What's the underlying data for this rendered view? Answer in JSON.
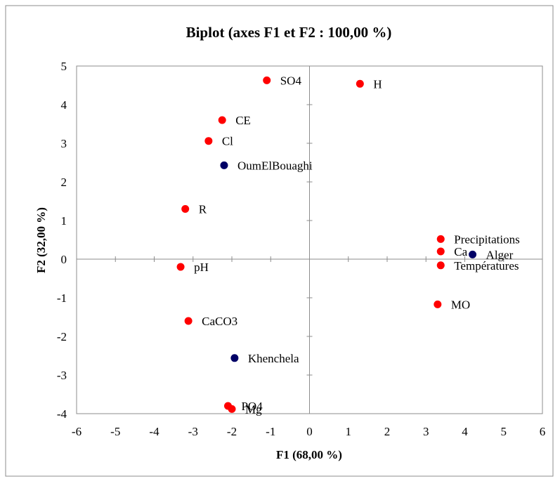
{
  "chart_data": {
    "type": "scatter",
    "title": "Biplot (axes F1 et F2 : 100,00 %)",
    "xlabel": "F1 (68,00 %)",
    "ylabel": "F2 (32,00 %)",
    "xlim": [
      -6,
      6
    ],
    "ylim": [
      -4,
      5
    ],
    "xticks": [
      "-6",
      "-5",
      "-4",
      "-3",
      "-2",
      "-1",
      "0",
      "1",
      "2",
      "3",
      "4",
      "5",
      "6"
    ],
    "yticks": [
      "-4",
      "-3",
      "-2",
      "-1",
      "0",
      "1",
      "2",
      "3",
      "4",
      "5"
    ],
    "grid": false,
    "legend": "none",
    "series": [
      {
        "color": "#ff0000",
        "points": [
          {
            "label": "SO4",
            "x": -1.1,
            "y": 4.63
          },
          {
            "label": "H",
            "x": 1.3,
            "y": 4.54
          },
          {
            "label": "CE",
            "x": -2.25,
            "y": 3.6
          },
          {
            "label": "Cl",
            "x": -2.6,
            "y": 3.06
          },
          {
            "label": "R",
            "x": -3.2,
            "y": 1.3
          },
          {
            "label": "pH",
            "x": -3.32,
            "y": -0.2
          },
          {
            "label": "CaCO3",
            "x": -3.12,
            "y": -1.6
          },
          {
            "label": "PO4",
            "x": -2.1,
            "y": -3.8
          },
          {
            "label": "Mg",
            "x": -2.0,
            "y": -3.88
          },
          {
            "label": "Precipitations",
            "x": 3.38,
            "y": 0.52
          },
          {
            "label": "Ca",
            "x": 3.38,
            "y": 0.2
          },
          {
            "label": "Températures",
            "x": 3.38,
            "y": -0.16
          },
          {
            "label": "MO",
            "x": 3.3,
            "y": -1.17
          }
        ]
      },
      {
        "color": "#000066",
        "points": [
          {
            "label": "OumElBouaghi",
            "x": -2.2,
            "y": 2.43
          },
          {
            "label": "Khenchela",
            "x": -1.93,
            "y": -2.56
          },
          {
            "label": "Alger",
            "x": 4.2,
            "y": 0.12
          }
        ]
      }
    ]
  }
}
